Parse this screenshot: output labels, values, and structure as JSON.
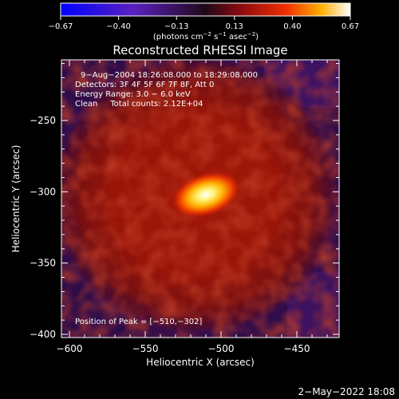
{
  "colorbar": {
    "ticks": [
      "−0.67",
      "−0.40",
      "−0.13",
      "0.13",
      "0.40",
      "0.67"
    ],
    "units_pre": "(photons cm",
    "units_exp1": "−2",
    "units_mid": " s",
    "units_exp2": "−1",
    "units_mid2": " asec",
    "units_exp3": "−2",
    "units_post": ")"
  },
  "info": {
    "line1": "9−Aug−2004 18:26:08.000 to 18:29:08.000",
    "line2": "Detectors: 3F 4F 5F 6F 7F 8F, Att 0",
    "line3": "Energy Range: 3.0 − 6.0 keV",
    "line4": "Clean     Total counts: 2.12E+04",
    "peak": "Position of Peak = [−510,−302]"
  },
  "footer": {
    "date": "2−May−2022 18:08"
  },
  "chart_data": {
    "type": "heatmap",
    "title": "Reconstructed RHESSI Image",
    "xlabel": "Heliocentric X (arcsec)",
    "ylabel": "Heliocentric Y (arcsec)",
    "xlim": [
      -608,
      -582
    ],
    "ylim": [
      -402,
      -203
    ],
    "x_ticks": [
      -600,
      -550,
      -500,
      -450
    ],
    "x_tick_labels": [
      "−600",
      "−550",
      "−500",
      "−450"
    ],
    "y_ticks": [
      -400,
      -350,
      -300,
      -250
    ],
    "y_tick_labels": [
      "−400",
      "−350",
      "−300",
      "−250"
    ],
    "colorbar_range": [
      -0.67,
      0.67
    ],
    "colormap": "hot-with-blue-negative",
    "peak_position": [
      -510,
      -302
    ],
    "peak_value": 0.67,
    "source": {
      "x": -510,
      "y": -302,
      "sigma_x": 13,
      "sigma_y": 8,
      "amplitude": 0.67
    },
    "background_halo": {
      "center_x": -512,
      "center_y": -305,
      "radius": 95,
      "level": 0.22
    },
    "outer_background_level": -0.15,
    "colors": {
      "negative": "#0000ff",
      "zero": "#2a0a3a",
      "mid": "#d01000",
      "high": "#ffb000",
      "max": "#ffffff"
    }
  }
}
